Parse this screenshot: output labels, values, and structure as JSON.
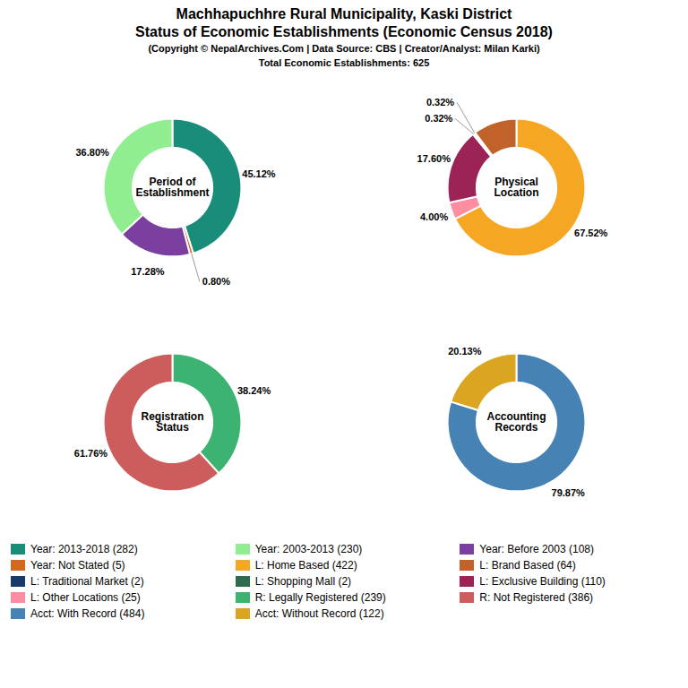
{
  "title": [
    "Machhapuchhre Rural Municipality, Kaski District",
    "Status of Economic Establishments (Economic Census 2018)"
  ],
  "subtitle": [
    "(Copyright © NepalArchives.Com | Data Source: CBS | Creator/Analyst: Milan Karki)",
    "Total Economic Establishments: 625"
  ],
  "legend_entries": [
    {
      "name": "Year: 2013-2018 (282)",
      "color": "#1a8c7a"
    },
    {
      "name": "Year: 2003-2013 (230)",
      "color": "#90ee90"
    },
    {
      "name": "Year: Before 2003 (108)",
      "color": "#7b3fa0"
    },
    {
      "name": "Year: Not Stated (5)",
      "color": "#d2691e"
    },
    {
      "name": "L: Home Based (422)",
      "color": "#f5a623"
    },
    {
      "name": "L: Brand Based (64)",
      "color": "#c0622a"
    },
    {
      "name": "L: Traditional Market (2)",
      "color": "#1a3a6b"
    },
    {
      "name": "L: Shopping Mall (2)",
      "color": "#2e6b4f"
    },
    {
      "name": "L: Exclusive Building (110)",
      "color": "#9b2355"
    },
    {
      "name": "L: Other Locations (25)",
      "color": "#ff8da1"
    },
    {
      "name": "R: Legally Registered (239)",
      "color": "#3cb371"
    },
    {
      "name": "R: Not Registered (386)",
      "color": "#cd5c5c"
    },
    {
      "name": "Acct: With Record (484)",
      "color": "#4682b4"
    },
    {
      "name": "Acct: Without Record (122)",
      "color": "#daa520"
    }
  ],
  "chart_data": [
    {
      "type": "pie",
      "title": "Period of\nEstablishment",
      "values": [
        45.12,
        0.8,
        17.28,
        36.8
      ],
      "value_labels": [
        "45.12%",
        "0.80%",
        "17.28%",
        "36.80%"
      ],
      "colors": [
        "#1a8c7a",
        "#d2691e",
        "#7b3fa0",
        "#90ee90"
      ],
      "data_labels": true
    },
    {
      "type": "pie",
      "title": "Physical\nLocation",
      "values": [
        67.52,
        4.0,
        17.6,
        0.32,
        0.32,
        10.24
      ],
      "value_labels": [
        "67.52%",
        "4.00%",
        "17.60%",
        "0.32%",
        "0.32%",
        null
      ],
      "colors": [
        "#f5a623",
        "#ff8da1",
        "#9b2355",
        "#1a3a6b",
        "#2e6b4f",
        "#c0622a"
      ],
      "data_labels": true
    },
    {
      "type": "pie",
      "title": "Registration\nStatus",
      "values": [
        38.24,
        61.76
      ],
      "value_labels": [
        "38.24%",
        "61.76%"
      ],
      "colors": [
        "#3cb371",
        "#cd5c5c"
      ],
      "data_labels": true
    },
    {
      "type": "pie",
      "title": "Accounting\nRecords",
      "values": [
        79.87,
        20.13
      ],
      "value_labels": [
        "79.87%",
        "20.13%"
      ],
      "colors": [
        "#4682b4",
        "#daa520"
      ],
      "data_labels": true
    }
  ]
}
